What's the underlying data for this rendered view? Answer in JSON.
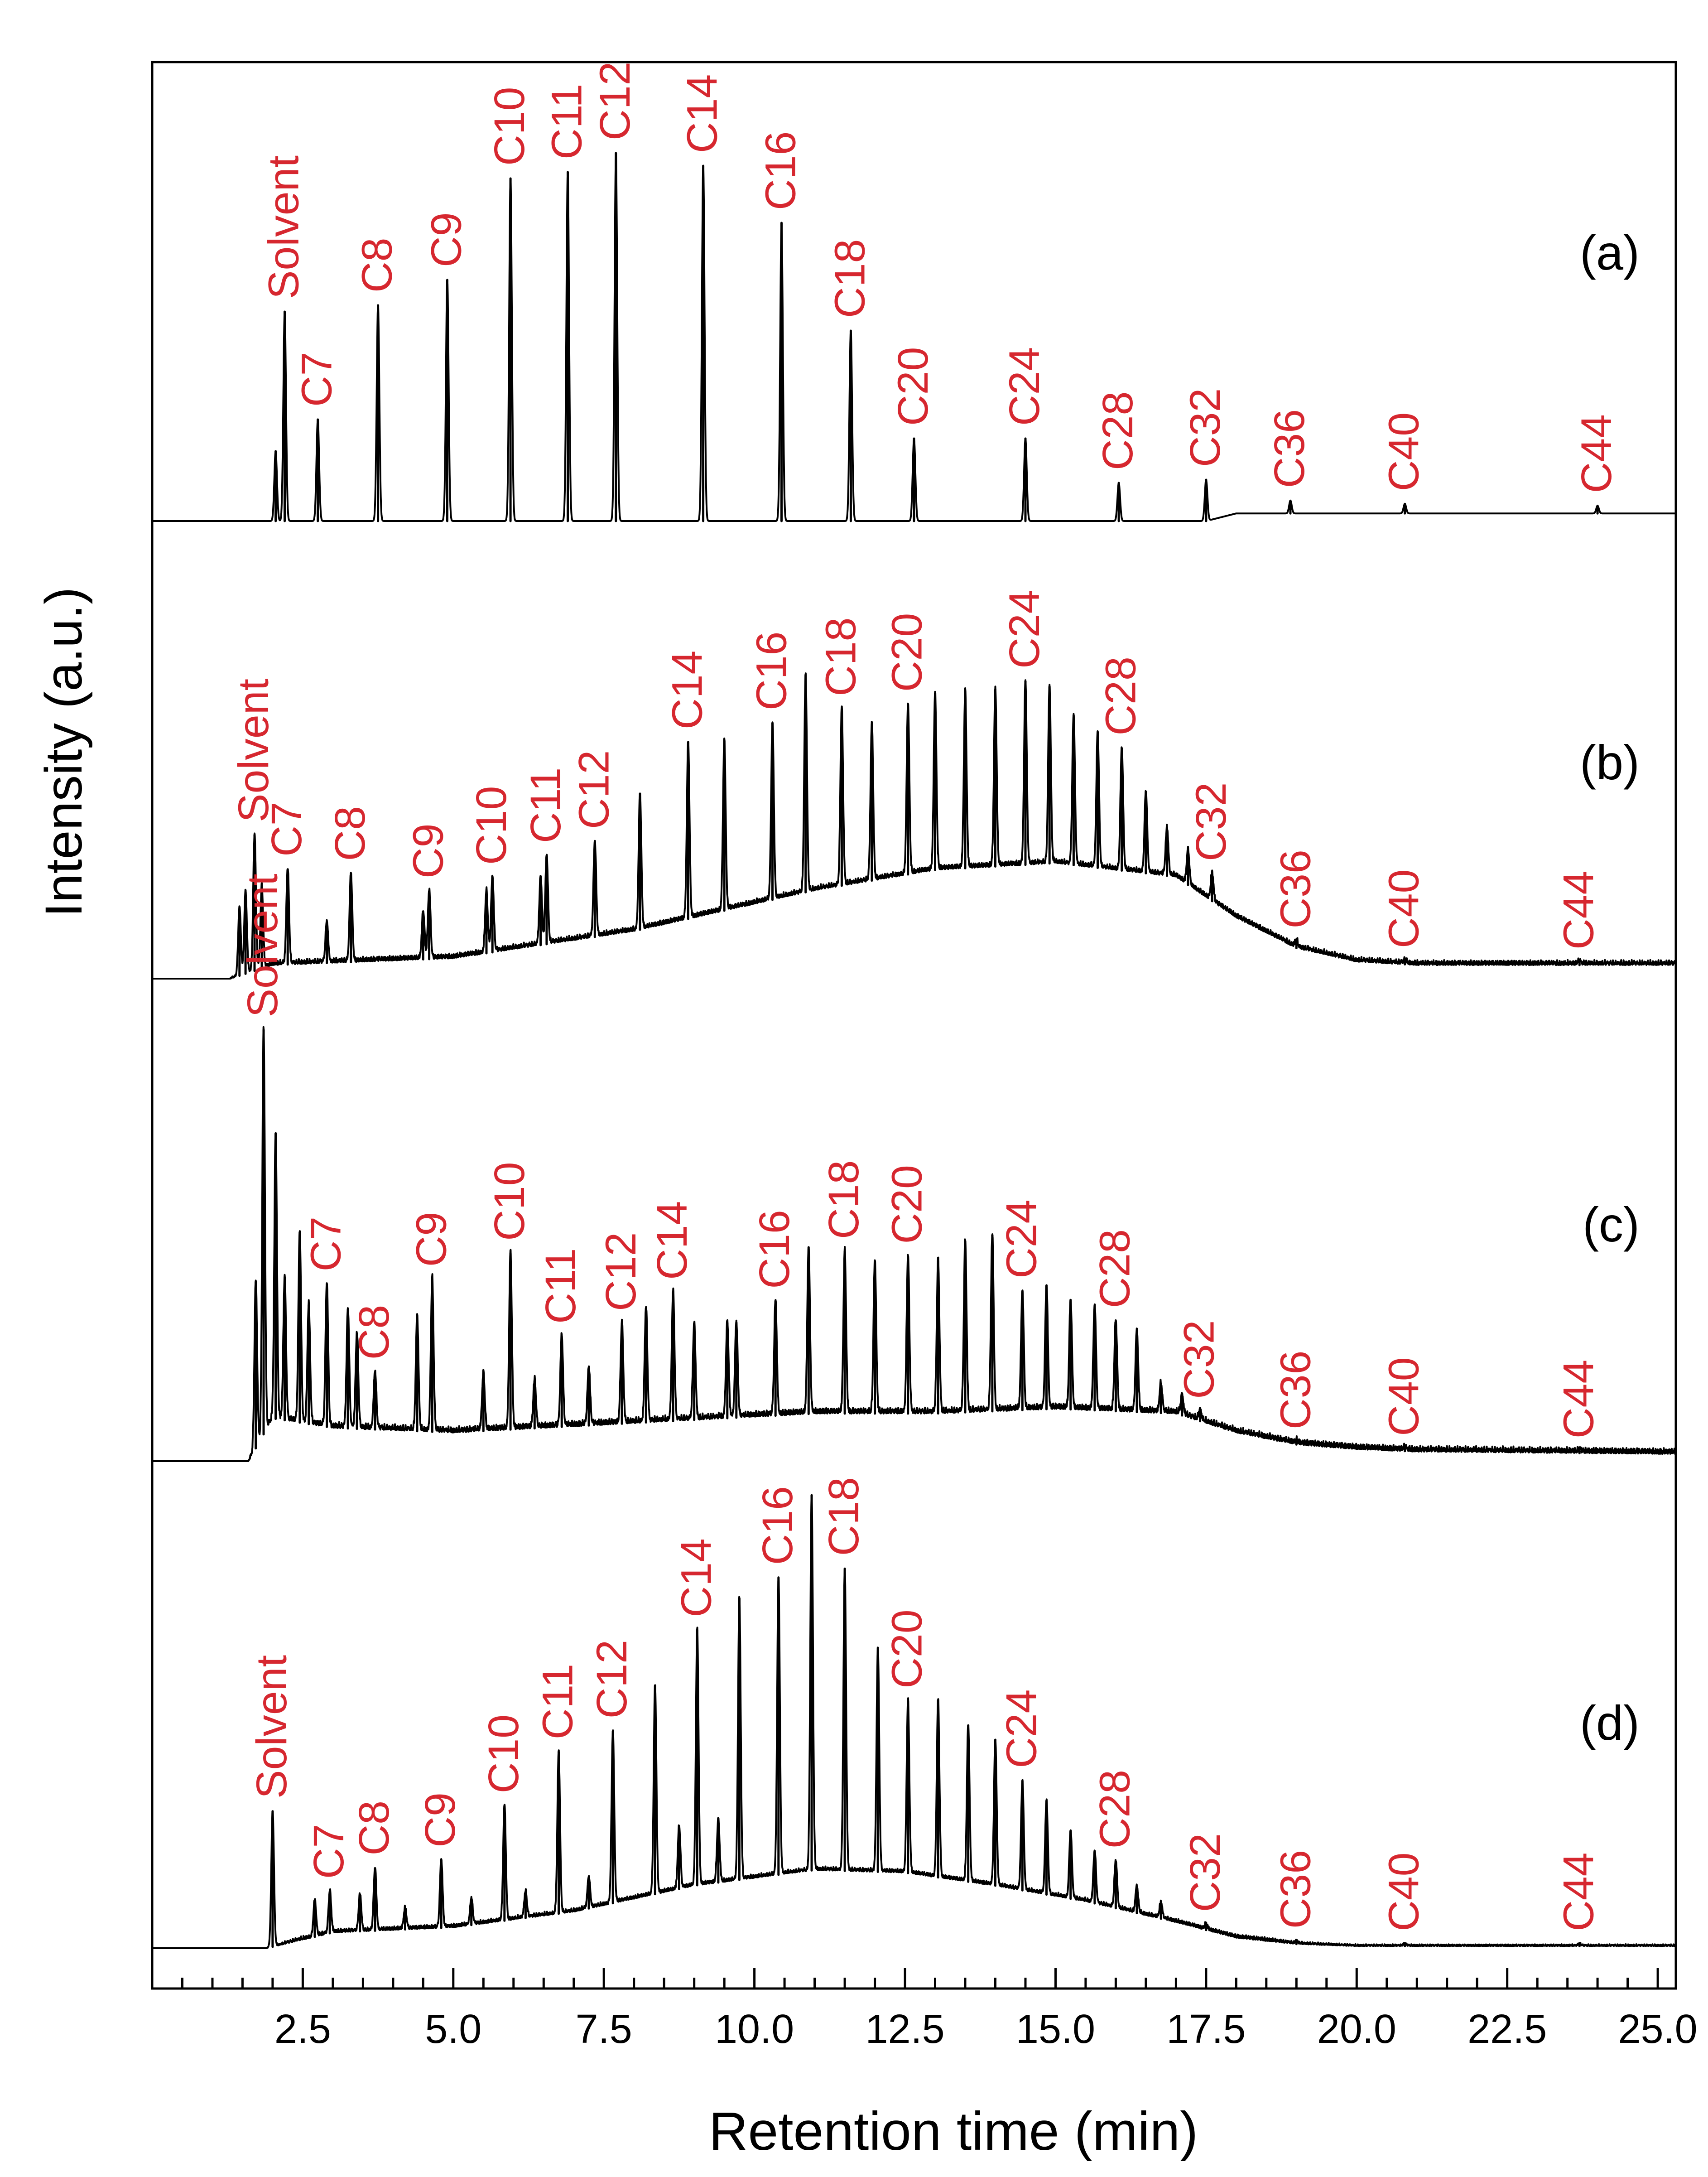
{
  "chart_data": {
    "type": "line",
    "subtype": "stacked gas chromatograms",
    "xlabel": "Retention time (min)",
    "ylabel": "Intensity (a.u.)",
    "xlim": [
      0,
      25.3
    ],
    "x_ticks": [
      {
        "value": 2.5,
        "label": "2.5"
      },
      {
        "value": 5.0,
        "label": "5.0"
      },
      {
        "value": 7.5,
        "label": "7.5"
      },
      {
        "value": 10.0,
        "label": "10.0"
      },
      {
        "value": 12.5,
        "label": "12.5"
      },
      {
        "value": 15.0,
        "label": "15.0"
      },
      {
        "value": 17.5,
        "label": "17.5"
      },
      {
        "value": 20.0,
        "label": "20.0"
      },
      {
        "value": 22.5,
        "label": "22.5"
      },
      {
        "value": 25.0,
        "label": "25.0"
      }
    ],
    "x_minor_step": 0.5,
    "peak_label_color": "#d6272f",
    "line_color": "#000000",
    "panels": [
      {
        "id": "a",
        "panel_label": "(a)",
        "ylim": [
          0,
          1.0
        ],
        "baseline": {
          "x": [
            1.7,
            2.2,
            3.0,
            8.0,
            12.0,
            17.5,
            18.0,
            20.0,
            25.3
          ],
          "y": [
            0.0,
            0.0,
            0.0,
            0.0,
            0.0,
            0.0,
            0.012,
            0.012,
            0.012
          ]
        },
        "noise": 0.0,
        "start_time": 0.0,
        "peaks": [
          {
            "label": "",
            "rt": 2.05,
            "height": 0.11
          },
          {
            "label": "Solvent",
            "rt": 2.2,
            "height": 0.33
          },
          {
            "label": "C7",
            "rt": 2.75,
            "height": 0.16
          },
          {
            "label": "C8",
            "rt": 3.75,
            "height": 0.34
          },
          {
            "label": "C9",
            "rt": 4.9,
            "height": 0.38
          },
          {
            "label": "C10",
            "rt": 5.95,
            "height": 0.54
          },
          {
            "label": "C11",
            "rt": 6.9,
            "height": 0.55
          },
          {
            "label": "C12",
            "rt": 7.7,
            "height": 0.58
          },
          {
            "label": "C14",
            "rt": 9.15,
            "height": 0.56
          },
          {
            "label": "C16",
            "rt": 10.45,
            "height": 0.47
          },
          {
            "label": "C18",
            "rt": 11.6,
            "height": 0.3
          },
          {
            "label": "C20",
            "rt": 12.65,
            "height": 0.13
          },
          {
            "label": "C24",
            "rt": 14.5,
            "height": 0.13
          },
          {
            "label": "C28",
            "rt": 16.05,
            "height": 0.06
          },
          {
            "label": "C32",
            "rt": 17.5,
            "height": 0.065
          },
          {
            "label": "C36",
            "rt": 18.9,
            "height": 0.02
          },
          {
            "label": "C40",
            "rt": 20.8,
            "height": 0.015
          },
          {
            "label": "C44",
            "rt": 24.0,
            "height": 0.012
          }
        ]
      },
      {
        "id": "b",
        "panel_label": "(b)",
        "ylim": [
          0,
          1.0
        ],
        "baseline": {
          "x": [
            1.3,
            2.0,
            5.0,
            8.0,
            11.0,
            13.0,
            15.0,
            17.0,
            18.0,
            19.0,
            20.0,
            21.0,
            25.3
          ],
          "y": [
            0.0,
            0.02,
            0.03,
            0.07,
            0.13,
            0.16,
            0.17,
            0.15,
            0.09,
            0.045,
            0.025,
            0.02,
            0.02
          ]
        },
        "noise": 0.007,
        "start_time": 1.3,
        "peaks": [
          {
            "label": "",
            "rt": 1.45,
            "height": 0.1
          },
          {
            "label": "",
            "rt": 1.55,
            "height": 0.12
          },
          {
            "label": "Solvent",
            "rt": 1.7,
            "height": 0.2
          },
          {
            "label": "",
            "rt": 1.82,
            "height": 0.12
          },
          {
            "label": "C7",
            "rt": 2.25,
            "height": 0.14
          },
          {
            "label": "",
            "rt": 2.9,
            "height": 0.06
          },
          {
            "label": "C8",
            "rt": 3.3,
            "height": 0.13
          },
          {
            "label": "",
            "rt": 4.5,
            "height": 0.07
          },
          {
            "label": "C9",
            "rt": 4.6,
            "height": 0.1
          },
          {
            "label": "",
            "rt": 5.55,
            "height": 0.09
          },
          {
            "label": "C10",
            "rt": 5.65,
            "height": 0.11
          },
          {
            "label": "",
            "rt": 6.45,
            "height": 0.1
          },
          {
            "label": "C11",
            "rt": 6.55,
            "height": 0.13
          },
          {
            "label": "C12",
            "rt": 7.35,
            "height": 0.14
          },
          {
            "label": "",
            "rt": 8.1,
            "height": 0.2
          },
          {
            "label": "C14",
            "rt": 8.9,
            "height": 0.26
          },
          {
            "label": "",
            "rt": 9.5,
            "height": 0.25
          },
          {
            "label": "C16",
            "rt": 10.3,
            "height": 0.26
          },
          {
            "label": "",
            "rt": 10.85,
            "height": 0.32
          },
          {
            "label": "C18",
            "rt": 11.45,
            "height": 0.26
          },
          {
            "label": "",
            "rt": 11.95,
            "height": 0.23
          },
          {
            "label": "C20",
            "rt": 12.55,
            "height": 0.25
          },
          {
            "label": "",
            "rt": 13.0,
            "height": 0.26
          },
          {
            "label": "",
            "rt": 13.5,
            "height": 0.26
          },
          {
            "label": "",
            "rt": 14.0,
            "height": 0.26
          },
          {
            "label": "C24",
            "rt": 14.5,
            "height": 0.27
          },
          {
            "label": "",
            "rt": 14.9,
            "height": 0.26
          },
          {
            "label": "",
            "rt": 15.3,
            "height": 0.22
          },
          {
            "label": "",
            "rt": 15.7,
            "height": 0.2
          },
          {
            "label": "C28",
            "rt": 16.1,
            "height": 0.18
          },
          {
            "label": "",
            "rt": 16.5,
            "height": 0.12
          },
          {
            "label": "",
            "rt": 16.85,
            "height": 0.07
          },
          {
            "label": "",
            "rt": 17.2,
            "height": 0.05
          },
          {
            "label": "C32",
            "rt": 17.6,
            "height": 0.04
          },
          {
            "label": "C36",
            "rt": 19.0,
            "height": 0.01
          },
          {
            "label": "C40",
            "rt": 20.8,
            "height": 0.005
          },
          {
            "label": "C44",
            "rt": 23.7,
            "height": 0.004
          }
        ]
      },
      {
        "id": "c",
        "panel_label": "(c)",
        "ylim": [
          0,
          1.0
        ],
        "baseline": {
          "x": [
            1.6,
            2.0,
            3.0,
            5.0,
            8.0,
            11.0,
            13.0,
            15.0,
            17.0,
            18.0,
            19.0,
            20.0,
            21.0,
            25.3
          ],
          "y": [
            0.0,
            0.09,
            0.07,
            0.06,
            0.08,
            0.1,
            0.1,
            0.11,
            0.1,
            0.06,
            0.035,
            0.025,
            0.02,
            0.015
          ]
        },
        "noise": 0.012,
        "start_time": 1.6,
        "peaks": [
          {
            "label": "",
            "rt": 1.72,
            "height": 0.35
          },
          {
            "label": "Solvent",
            "rt": 1.85,
            "height": 0.85
          },
          {
            "label": "",
            "rt": 2.05,
            "height": 0.6
          },
          {
            "label": "",
            "rt": 2.2,
            "height": 0.3
          },
          {
            "label": "",
            "rt": 2.45,
            "height": 0.4
          },
          {
            "label": "",
            "rt": 2.6,
            "height": 0.25
          },
          {
            "label": "C7",
            "rt": 2.9,
            "height": 0.3
          },
          {
            "label": "",
            "rt": 3.25,
            "height": 0.25
          },
          {
            "label": "",
            "rt": 3.4,
            "height": 0.2
          },
          {
            "label": "C8",
            "rt": 3.7,
            "height": 0.12
          },
          {
            "label": "",
            "rt": 4.4,
            "height": 0.24
          },
          {
            "label": "C9",
            "rt": 4.65,
            "height": 0.32
          },
          {
            "label": "",
            "rt": 5.5,
            "height": 0.12
          },
          {
            "label": "C10",
            "rt": 5.95,
            "height": 0.37
          },
          {
            "label": "",
            "rt": 6.35,
            "height": 0.1
          },
          {
            "label": "C11",
            "rt": 6.8,
            "height": 0.19
          },
          {
            "label": "",
            "rt": 7.25,
            "height": 0.12
          },
          {
            "label": "C12",
            "rt": 7.8,
            "height": 0.21
          },
          {
            "label": "",
            "rt": 8.2,
            "height": 0.24
          },
          {
            "label": "C14",
            "rt": 8.65,
            "height": 0.27
          },
          {
            "label": "",
            "rt": 9.0,
            "height": 0.2
          },
          {
            "label": "",
            "rt": 9.55,
            "height": 0.2
          },
          {
            "label": "",
            "rt": 9.7,
            "height": 0.2
          },
          {
            "label": "C16",
            "rt": 10.35,
            "height": 0.24
          },
          {
            "label": "",
            "rt": 10.9,
            "height": 0.35
          },
          {
            "label": "C18",
            "rt": 11.5,
            "height": 0.34
          },
          {
            "label": "",
            "rt": 12.0,
            "height": 0.32
          },
          {
            "label": "C20",
            "rt": 12.55,
            "height": 0.33
          },
          {
            "label": "",
            "rt": 13.05,
            "height": 0.32
          },
          {
            "label": "",
            "rt": 13.5,
            "height": 0.36
          },
          {
            "label": "",
            "rt": 13.95,
            "height": 0.37
          },
          {
            "label": "C24",
            "rt": 14.45,
            "height": 0.25
          },
          {
            "label": "",
            "rt": 14.85,
            "height": 0.26
          },
          {
            "label": "",
            "rt": 15.25,
            "height": 0.23
          },
          {
            "label": "",
            "rt": 15.65,
            "height": 0.22
          },
          {
            "label": "C28",
            "rt": 16.0,
            "height": 0.19
          },
          {
            "label": "",
            "rt": 16.35,
            "height": 0.17
          },
          {
            "label": "",
            "rt": 16.75,
            "height": 0.06
          },
          {
            "label": "",
            "rt": 17.1,
            "height": 0.04
          },
          {
            "label": "C32",
            "rt": 17.4,
            "height": 0.02
          },
          {
            "label": "C36",
            "rt": 19.0,
            "height": 0.005
          },
          {
            "label": "C40",
            "rt": 20.8,
            "height": 0.005
          },
          {
            "label": "C44",
            "rt": 23.7,
            "height": 0.004
          }
        ]
      },
      {
        "id": "d",
        "panel_label": "(d)",
        "ylim": [
          0,
          1.0
        ],
        "baseline": {
          "x": [
            1.9,
            3.0,
            5.0,
            7.0,
            9.0,
            11.0,
            12.5,
            14.0,
            15.5,
            17.0,
            18.0,
            19.0,
            20.0,
            25.3
          ],
          "y": [
            0.0,
            0.03,
            0.04,
            0.07,
            0.12,
            0.15,
            0.145,
            0.12,
            0.09,
            0.05,
            0.02,
            0.008,
            0.004,
            0.004
          ]
        },
        "noise": 0.007,
        "start_time": 1.9,
        "peaks": [
          {
            "label": "Solvent",
            "rt": 2.0,
            "height": 0.26
          },
          {
            "label": "",
            "rt": 2.7,
            "height": 0.07
          },
          {
            "label": "C7",
            "rt": 2.95,
            "height": 0.08
          },
          {
            "label": "",
            "rt": 3.45,
            "height": 0.07
          },
          {
            "label": "C8",
            "rt": 3.7,
            "height": 0.12
          },
          {
            "label": "",
            "rt": 4.2,
            "height": 0.04
          },
          {
            "label": "C9",
            "rt": 4.8,
            "height": 0.13
          },
          {
            "label": "",
            "rt": 5.3,
            "height": 0.05
          },
          {
            "label": "C10",
            "rt": 5.85,
            "height": 0.22
          },
          {
            "label": "",
            "rt": 6.2,
            "height": 0.05
          },
          {
            "label": "C11",
            "rt": 6.75,
            "height": 0.31
          },
          {
            "label": "",
            "rt": 7.25,
            "height": 0.06
          },
          {
            "label": "C12",
            "rt": 7.65,
            "height": 0.33
          },
          {
            "label": "",
            "rt": 8.35,
            "height": 0.4
          },
          {
            "label": "",
            "rt": 8.75,
            "height": 0.12
          },
          {
            "label": "C14",
            "rt": 9.05,
            "height": 0.49
          },
          {
            "label": "",
            "rt": 9.4,
            "height": 0.12
          },
          {
            "label": "",
            "rt": 9.75,
            "height": 0.54
          },
          {
            "label": "C16",
            "rt": 10.4,
            "height": 0.57
          },
          {
            "label": "",
            "rt": 10.95,
            "height": 0.72
          },
          {
            "label": "C18",
            "rt": 11.5,
            "height": 0.58
          },
          {
            "label": "",
            "rt": 12.05,
            "height": 0.43
          },
          {
            "label": "C20",
            "rt": 12.55,
            "height": 0.33
          },
          {
            "label": "",
            "rt": 13.05,
            "height": 0.34
          },
          {
            "label": "",
            "rt": 13.55,
            "height": 0.3
          },
          {
            "label": "",
            "rt": 14.0,
            "height": 0.28
          },
          {
            "label": "C24",
            "rt": 14.45,
            "height": 0.21
          },
          {
            "label": "",
            "rt": 14.85,
            "height": 0.18
          },
          {
            "label": "",
            "rt": 15.25,
            "height": 0.13
          },
          {
            "label": "",
            "rt": 15.65,
            "height": 0.1
          },
          {
            "label": "C28",
            "rt": 16.0,
            "height": 0.09
          },
          {
            "label": "",
            "rt": 16.35,
            "height": 0.05
          },
          {
            "label": "",
            "rt": 16.75,
            "height": 0.03
          },
          {
            "label": "C32",
            "rt": 17.5,
            "height": 0.01
          },
          {
            "label": "C36",
            "rt": 19.0,
            "height": 0.005
          },
          {
            "label": "C40",
            "rt": 20.8,
            "height": 0.004
          },
          {
            "label": "C44",
            "rt": 23.7,
            "height": 0.004
          }
        ]
      }
    ]
  }
}
